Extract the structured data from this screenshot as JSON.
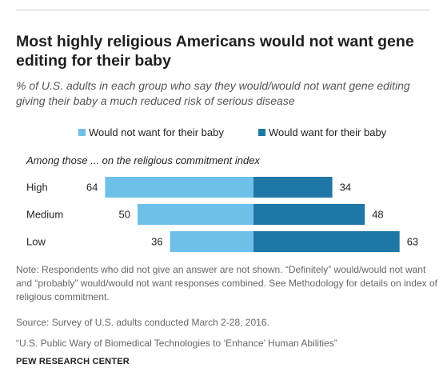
{
  "title": "Most highly religious Americans would not want gene editing for their baby",
  "subtitle": "% of U.S. adults in each group who say they would/would not want gene editing giving their baby a much reduced risk of serious disease",
  "group_label": "Among those ... on the religious commitment index",
  "note": "Note: Respondents who did not give an answer are not shown. “Definitely” would/would not want and “probably” would/would not want responses combined. See Methodology for details on index of religious commitment.",
  "source": "Source: Survey of U.S. adults conducted March 2-28, 2016.",
  "citation": "“U.S. Public Wary of Biomedical Technologies to ‘Enhance’ Human Abilities”",
  "org": "PEW RESEARCH CENTER",
  "colors": {
    "would_not_want": "#6ec0e8",
    "would_want": "#1f77a6"
  },
  "chart_data": {
    "type": "bar",
    "orientation": "horizontal diverging",
    "categories": [
      "High",
      "Medium",
      "Low"
    ],
    "series": [
      {
        "name": "Would not want for their baby",
        "values": [
          64,
          50,
          36
        ]
      },
      {
        "name": "Would want for their baby",
        "values": [
          34,
          48,
          63
        ]
      }
    ],
    "legend_placement": "top",
    "grid": false
  }
}
